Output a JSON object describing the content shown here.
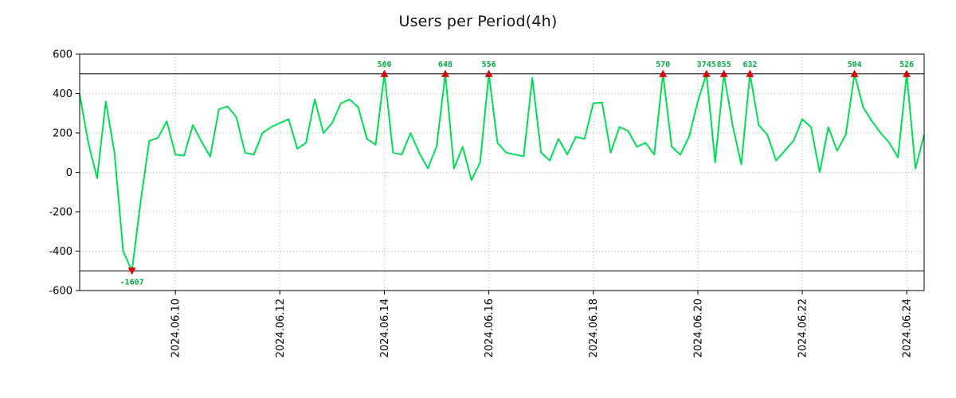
{
  "chart_data": {
    "type": "line",
    "title": "Users per Period(4h)",
    "series_color": "#00dd55",
    "marker_color": "#dd0000",
    "label_color": "#00aa44",
    "axis_color": "#000000",
    "grid_color": "#b0b0b0",
    "ylim": [
      -600,
      600
    ],
    "y_ticks": [
      600,
      400,
      200,
      0,
      -200,
      -400,
      -600
    ],
    "clip_lines": [
      500,
      -500
    ],
    "x_ticks": [
      {
        "index": 11,
        "label": "2024.06.10"
      },
      {
        "index": 23,
        "label": "2024.06.12"
      },
      {
        "index": 35,
        "label": "2024.06.14"
      },
      {
        "index": 47,
        "label": "2024.06.16"
      },
      {
        "index": 59,
        "label": "2024.06.18"
      },
      {
        "index": 71,
        "label": "2024.06.20"
      },
      {
        "index": 83,
        "label": "2024.06.22"
      },
      {
        "index": 95,
        "label": "2024.06.24"
      }
    ],
    "period": "4h",
    "values": [
      395,
      150,
      -30,
      360,
      100,
      -400,
      -1607,
      -150,
      160,
      175,
      260,
      90,
      85,
      240,
      155,
      80,
      320,
      335,
      280,
      100,
      90,
      200,
      230,
      250,
      270,
      120,
      150,
      370,
      200,
      250,
      350,
      370,
      330,
      170,
      140,
      580,
      100,
      90,
      200,
      100,
      20,
      130,
      648,
      20,
      130,
      -40,
      50,
      556,
      150,
      100,
      90,
      81,
      480,
      100,
      60,
      170,
      90,
      180,
      170,
      350,
      355,
      100,
      230,
      210,
      130,
      150,
      90,
      570,
      130,
      90,
      180,
      360,
      3745,
      50,
      855,
      240,
      40,
      632,
      240,
      190,
      60,
      110,
      160,
      270,
      230,
      0,
      230,
      110,
      190,
      504,
      330,
      260,
      200,
      150,
      75,
      526,
      20,
      190
    ],
    "peak_markers": [
      {
        "index": 6,
        "label": "-1607",
        "direction": "down"
      },
      {
        "index": 35,
        "label": "580",
        "direction": "up"
      },
      {
        "index": 42,
        "label": "648",
        "direction": "up"
      },
      {
        "index": 47,
        "label": "556",
        "direction": "up"
      },
      {
        "index": 67,
        "label": "570",
        "direction": "up"
      },
      {
        "index": 72,
        "label": "3745",
        "direction": "up"
      },
      {
        "index": 74,
        "label": "855",
        "direction": "up"
      },
      {
        "index": 77,
        "label": "632",
        "direction": "up"
      },
      {
        "index": 89,
        "label": "504",
        "direction": "up"
      },
      {
        "index": 95,
        "label": "526",
        "direction": "up"
      }
    ]
  }
}
